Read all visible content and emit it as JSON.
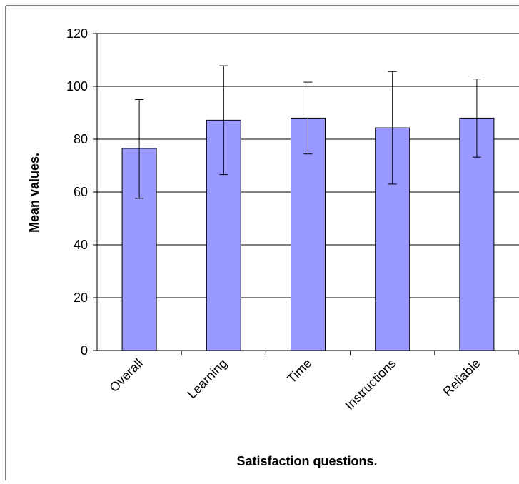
{
  "chart_data": {
    "type": "bar",
    "title": "",
    "xlabel": "Satisfaction questions.",
    "ylabel": "Mean values.",
    "ylim": [
      0,
      120
    ],
    "yticks": [
      0,
      20,
      40,
      60,
      80,
      100,
      120
    ],
    "grid": true,
    "legend": "none",
    "categories": [
      "Overall",
      "Learning",
      "Time",
      "Instructions",
      "Reliable"
    ],
    "values": [
      76.5,
      87.2,
      88,
      84.3,
      88
    ],
    "error_low": [
      57.6,
      66.6,
      74.4,
      63,
      73.2
    ],
    "error_high": [
      95,
      107.8,
      101.6,
      105.6,
      102.8
    ],
    "colors": {
      "bar": "#9999ff",
      "bar_stroke": "#000000",
      "grid": "#000000"
    }
  }
}
